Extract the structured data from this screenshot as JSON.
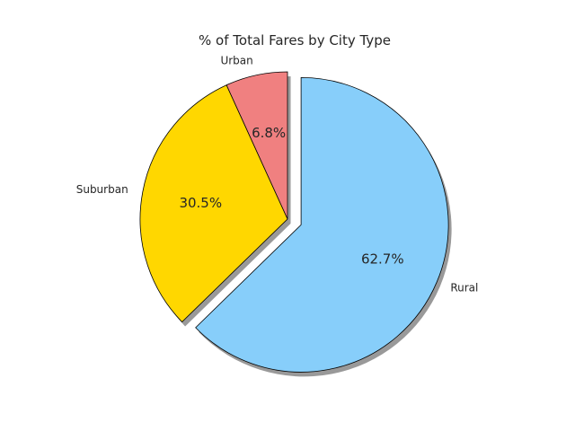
{
  "chart_data": {
    "type": "pie",
    "title": "% of Total Fares by City Type",
    "categories": [
      "Urban",
      "Suburban",
      "Rural"
    ],
    "values": [
      6.8,
      30.5,
      62.7
    ],
    "labels": [
      "6.8%",
      "30.5%",
      "62.7%"
    ],
    "colors": [
      "#F08080",
      "#FFD700",
      "#87CEFA"
    ],
    "explode": [
      0,
      0,
      0.1
    ],
    "startangle": 90,
    "shadow": true,
    "legend": "none"
  }
}
